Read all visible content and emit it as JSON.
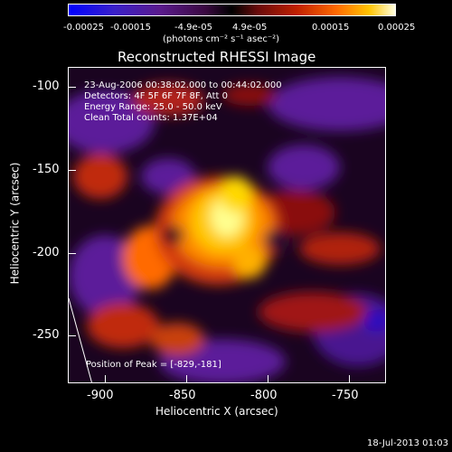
{
  "colorbar": {
    "ticks": [
      "-0.00025",
      "-0.00015",
      "-4.9e-05",
      "4.9e-05",
      "0.00015",
      "0.00025"
    ],
    "unit": "(photons cm⁻² s⁻¹ asec⁻²)"
  },
  "title": "Reconstructed RHESSI Image",
  "info": {
    "time": "23-Aug-2006 00:38:02.000 to 00:44:02.000",
    "detectors": "Detectors: 4F 5F 6F 7F 8F, Att 0",
    "energy": "Energy Range: 25.0 - 50.0 keV",
    "clean": "Clean    Total counts: 1.37E+04"
  },
  "peak": "Position of Peak = [-829,-181]",
  "xaxis": {
    "label": "Heliocentric X (arcsec)",
    "ticks": [
      "-900",
      "-850",
      "-800",
      "-750"
    ]
  },
  "yaxis": {
    "label": "Heliocentric Y (arcsec)",
    "ticks": [
      "-100",
      "-150",
      "-200",
      "-250"
    ]
  },
  "timestamp": "18-Jul-2013 01:03"
}
